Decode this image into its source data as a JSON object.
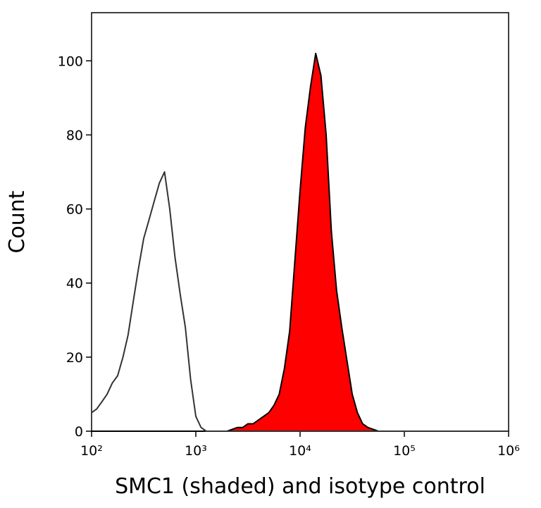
{
  "chart_data": {
    "type": "histogram-overlay",
    "x_label": "SMC1 (shaded) and isotype control",
    "y_label": "Count",
    "x_scale": "log",
    "xlim": [
      100,
      1000000
    ],
    "xticks": [
      {
        "value": 100,
        "label": "10²"
      },
      {
        "value": 1000,
        "label": "10³"
      },
      {
        "value": 10000,
        "label": "10⁴"
      },
      {
        "value": 100000,
        "label": "10⁵"
      },
      {
        "value": 1000000,
        "label": "10⁶"
      }
    ],
    "ylim": [
      0,
      113
    ],
    "yticks": [
      0,
      20,
      40,
      60,
      80,
      100
    ],
    "x": [
      100,
      112,
      126,
      141,
      158,
      178,
      200,
      224,
      251,
      282,
      316,
      355,
      398,
      447,
      501,
      562,
      631,
      708,
      794,
      891,
      1000,
      1122,
      1259,
      1413,
      1585,
      1778,
      1995,
      2239,
      2512,
      2818,
      3162,
      3548,
      3981,
      4467,
      5012,
      5623,
      6310,
      7079,
      7943,
      8913,
      10000,
      11220,
      12589,
      14125,
      15849,
      17783,
      19953,
      22387,
      25119,
      28184,
      31623,
      35481,
      39811,
      44668,
      50119,
      56234,
      63096,
      70795,
      79433,
      89125,
      100000,
      316228,
      1000000
    ],
    "series": [
      {
        "color": "#333333",
        "filled": false,
        "values": [
          5,
          6,
          8,
          10,
          13,
          15,
          20,
          26,
          35,
          44,
          52,
          57,
          62,
          67,
          70,
          60,
          47,
          37,
          28,
          14,
          4,
          1,
          0,
          0,
          0,
          0,
          0,
          0,
          0,
          0,
          0,
          0,
          0,
          0,
          0,
          0,
          0,
          0,
          0,
          0,
          0,
          0,
          0,
          0,
          0,
          0,
          0,
          0,
          0,
          0,
          0,
          0,
          0,
          0,
          0,
          0,
          0,
          0,
          0,
          0,
          0,
          0,
          0
        ]
      },
      {
        "color": "#ff0000",
        "filled": true,
        "values": [
          0,
          0,
          0,
          0,
          0,
          0,
          0,
          0,
          0,
          0,
          0,
          0,
          0,
          0,
          0,
          0,
          0,
          0,
          0,
          0,
          0,
          0,
          0,
          0,
          0,
          0,
          0,
          0.5,
          1,
          1,
          2,
          2,
          3,
          4,
          5,
          7,
          10,
          17,
          27,
          46,
          65,
          82,
          93,
          102,
          96,
          80,
          54,
          38,
          28,
          19,
          10,
          5,
          2,
          1,
          0.5,
          0,
          0,
          0,
          0,
          0,
          0,
          0,
          0
        ]
      }
    ]
  }
}
